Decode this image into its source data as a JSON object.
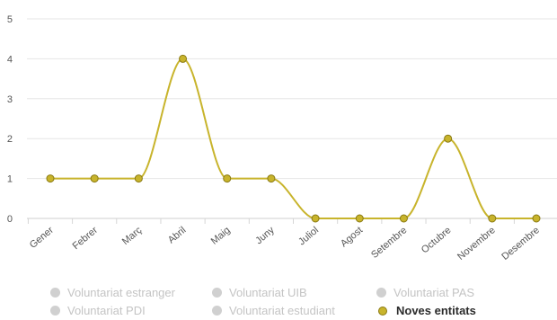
{
  "chart_data": {
    "type": "line",
    "categories": [
      "Gener",
      "Febrer",
      "Març",
      "Abril",
      "Maig",
      "Juny",
      "Juliol",
      "Agost",
      "Setembre",
      "Octubre",
      "Novembre",
      "Desembre"
    ],
    "series": [
      {
        "name": "Noves entitats",
        "values": [
          1,
          1,
          1,
          4,
          1,
          1,
          0,
          0,
          0,
          2,
          0,
          0
        ],
        "color": "#c8b42c"
      }
    ],
    "yticks": [
      "0",
      "1",
      "2",
      "3",
      "4",
      "5"
    ],
    "ylim": [
      0,
      5
    ],
    "grid": true,
    "legend_position": "bottom"
  },
  "legend": {
    "items": [
      {
        "label": "Voluntariat estranger",
        "active": false
      },
      {
        "label": "Voluntariat UIB",
        "active": false
      },
      {
        "label": "Voluntariat PAS",
        "active": false
      },
      {
        "label": "Voluntariat PDI",
        "active": false
      },
      {
        "label": "Voluntariat estudiant",
        "active": false
      },
      {
        "label": "Noves entitats",
        "active": true
      }
    ]
  },
  "colors": {
    "series": "#c8b42c",
    "grid": "#e6e6e6",
    "inactive_legend": "#d0d0d0"
  }
}
